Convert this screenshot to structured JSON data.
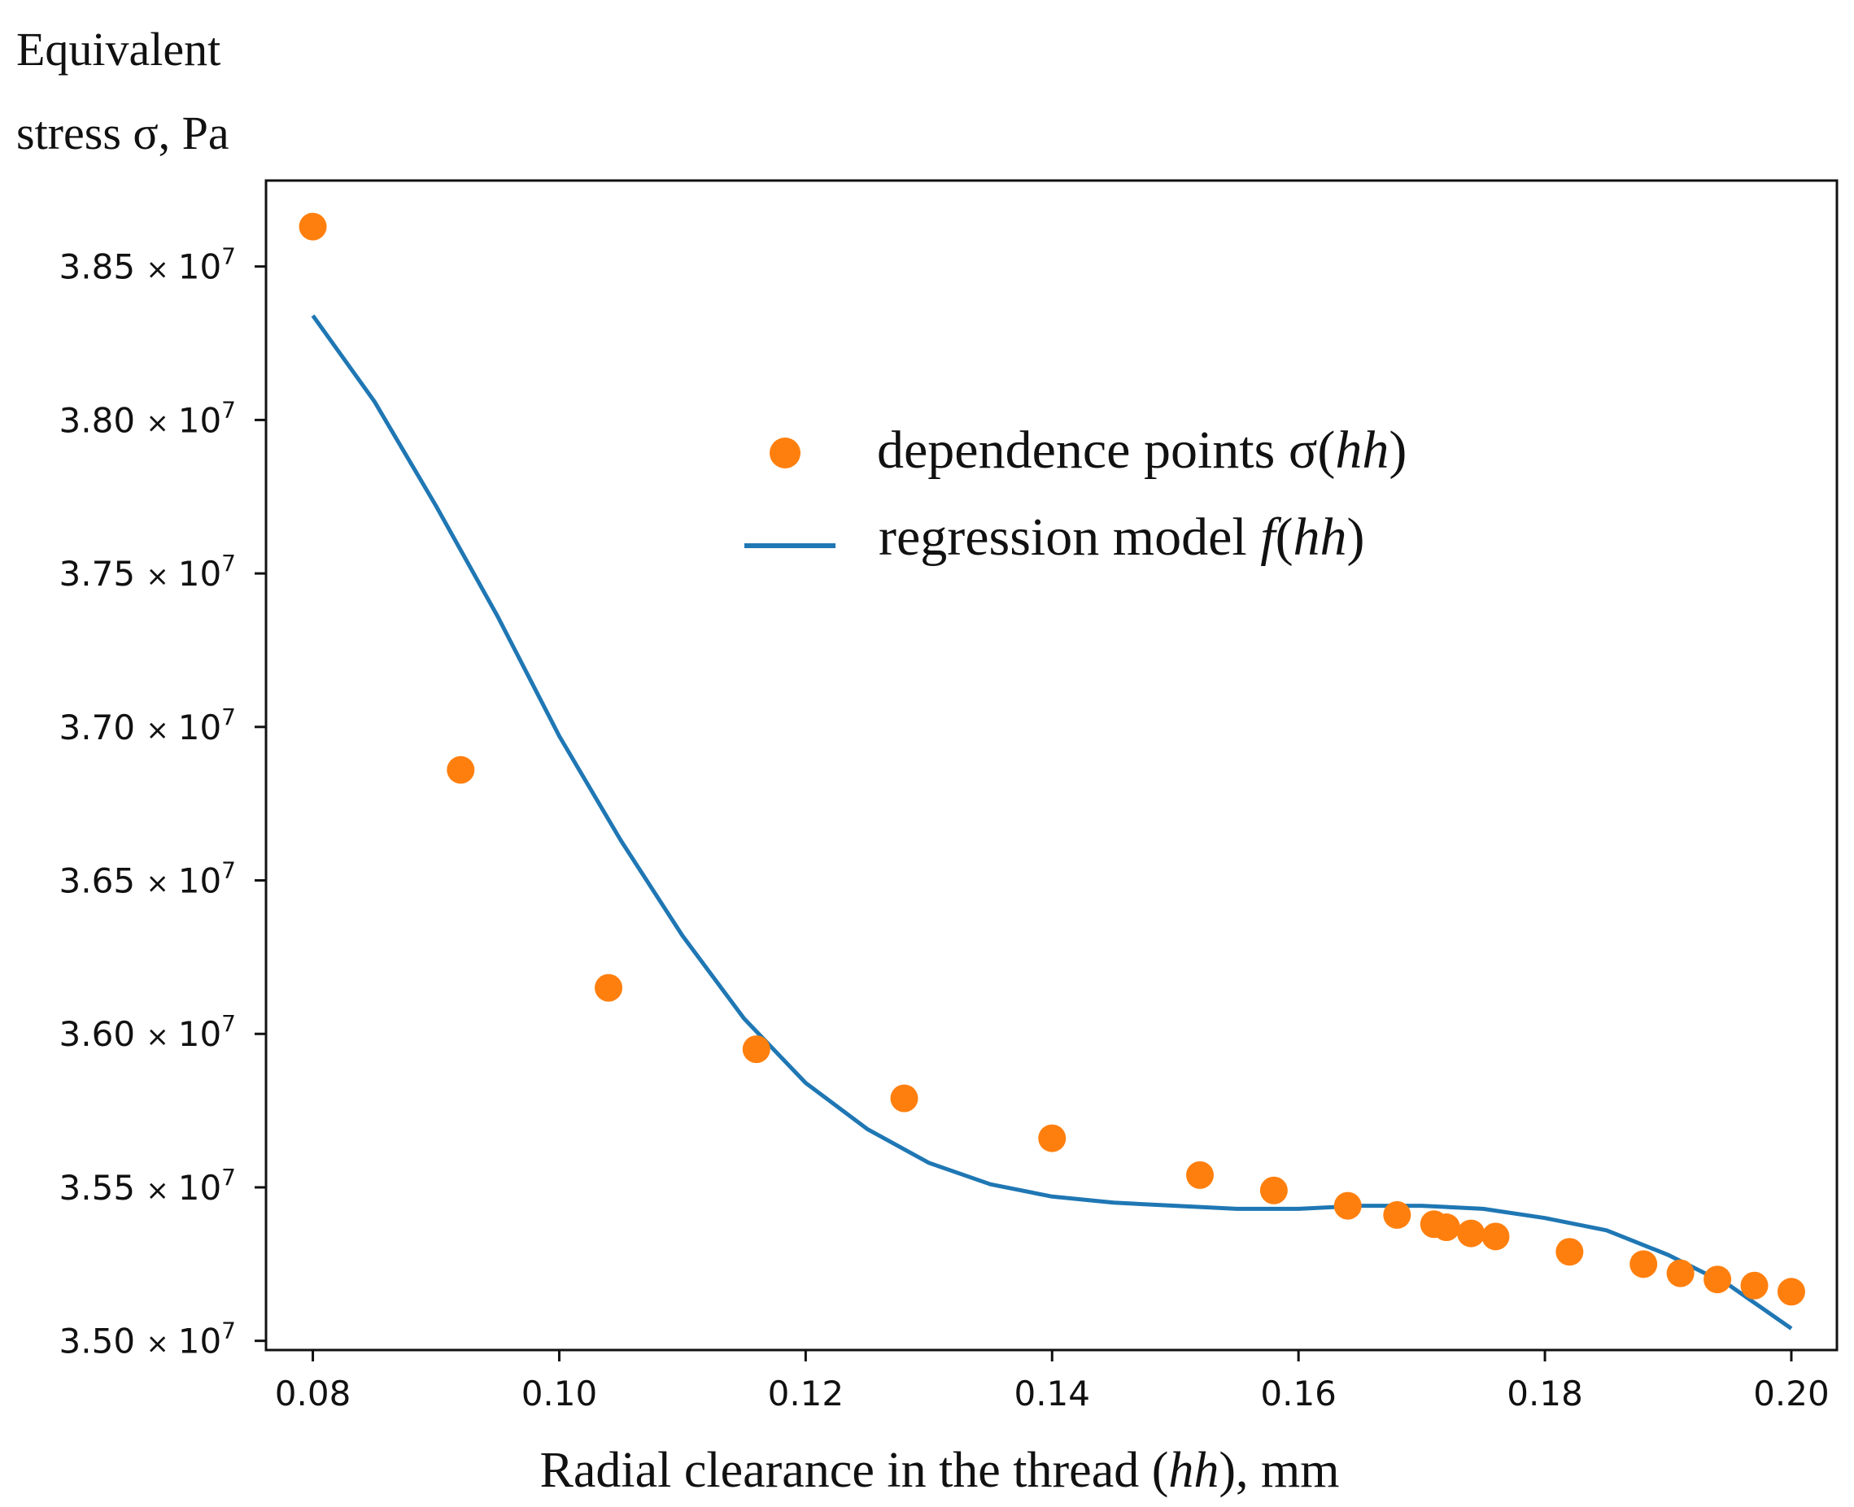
{
  "chart_data": {
    "type": "scatter",
    "ylabel_line1": "Equivalent",
    "ylabel_line2": "stress σ, Pa",
    "xlabel": "Radial clearance in the thread (hh), mm",
    "xlim": [
      0.0762,
      0.2037
    ],
    "ylim": [
      34.97,
      38.78
    ],
    "y_scale_label": "× 10⁷",
    "x_ticks": [
      {
        "value": 0.08,
        "label": "0.08"
      },
      {
        "value": 0.1,
        "label": "0.10"
      },
      {
        "value": 0.12,
        "label": "0.12"
      },
      {
        "value": 0.14,
        "label": "0.14"
      },
      {
        "value": 0.16,
        "label": "0.16"
      },
      {
        "value": 0.18,
        "label": "0.18"
      },
      {
        "value": 0.2,
        "label": "0.20"
      }
    ],
    "y_ticks": [
      {
        "value": 35.0,
        "mant": "3.50",
        "times": "×",
        "base": "10",
        "exp": "7"
      },
      {
        "value": 35.5,
        "mant": "3.55",
        "times": "×",
        "base": "10",
        "exp": "7"
      },
      {
        "value": 36.0,
        "mant": "3.60",
        "times": "×",
        "base": "10",
        "exp": "7"
      },
      {
        "value": 36.5,
        "mant": "3.65",
        "times": "×",
        "base": "10",
        "exp": "7"
      },
      {
        "value": 37.0,
        "mant": "3.70",
        "times": "×",
        "base": "10",
        "exp": "7"
      },
      {
        "value": 37.5,
        "mant": "3.75",
        "times": "×",
        "base": "10",
        "exp": "7"
      },
      {
        "value": 38.0,
        "mant": "3.80",
        "times": "×",
        "base": "10",
        "exp": "7"
      },
      {
        "value": 38.5,
        "mant": "3.85",
        "times": "×",
        "base": "10",
        "exp": "7"
      }
    ],
    "series": [
      {
        "name": "dependence points σ(hh)",
        "kind": "scatter",
        "color": "#ff7f0e",
        "points": [
          {
            "x": 0.08,
            "y": 38.63
          },
          {
            "x": 0.092,
            "y": 36.86
          },
          {
            "x": 0.104,
            "y": 36.15
          },
          {
            "x": 0.116,
            "y": 35.95
          },
          {
            "x": 0.128,
            "y": 35.79
          },
          {
            "x": 0.14,
            "y": 35.66
          },
          {
            "x": 0.152,
            "y": 35.54
          },
          {
            "x": 0.158,
            "y": 35.49
          },
          {
            "x": 0.164,
            "y": 35.44
          },
          {
            "x": 0.168,
            "y": 35.41
          },
          {
            "x": 0.171,
            "y": 35.38
          },
          {
            "x": 0.172,
            "y": 35.37
          },
          {
            "x": 0.174,
            "y": 35.35
          },
          {
            "x": 0.176,
            "y": 35.34
          },
          {
            "x": 0.182,
            "y": 35.29
          },
          {
            "x": 0.188,
            "y": 35.25
          },
          {
            "x": 0.191,
            "y": 35.22
          },
          {
            "x": 0.194,
            "y": 35.2
          },
          {
            "x": 0.197,
            "y": 35.18
          },
          {
            "x": 0.2,
            "y": 35.16
          }
        ]
      },
      {
        "name": "regression model f(hh)",
        "kind": "line",
        "color": "#1f77b4",
        "points": [
          {
            "x": 0.08,
            "y": 38.34
          },
          {
            "x": 0.085,
            "y": 38.06
          },
          {
            "x": 0.09,
            "y": 37.72
          },
          {
            "x": 0.095,
            "y": 37.36
          },
          {
            "x": 0.1,
            "y": 36.97
          },
          {
            "x": 0.105,
            "y": 36.63
          },
          {
            "x": 0.11,
            "y": 36.32
          },
          {
            "x": 0.115,
            "y": 36.05
          },
          {
            "x": 0.12,
            "y": 35.84
          },
          {
            "x": 0.125,
            "y": 35.69
          },
          {
            "x": 0.13,
            "y": 35.58
          },
          {
            "x": 0.135,
            "y": 35.51
          },
          {
            "x": 0.14,
            "y": 35.47
          },
          {
            "x": 0.145,
            "y": 35.45
          },
          {
            "x": 0.15,
            "y": 35.44
          },
          {
            "x": 0.155,
            "y": 35.43
          },
          {
            "x": 0.16,
            "y": 35.43
          },
          {
            "x": 0.165,
            "y": 35.44
          },
          {
            "x": 0.17,
            "y": 35.44
          },
          {
            "x": 0.175,
            "y": 35.43
          },
          {
            "x": 0.18,
            "y": 35.4
          },
          {
            "x": 0.185,
            "y": 35.36
          },
          {
            "x": 0.19,
            "y": 35.28
          },
          {
            "x": 0.195,
            "y": 35.18
          },
          {
            "x": 0.2,
            "y": 35.04
          }
        ]
      }
    ],
    "legend": {
      "position": "top-center",
      "entries": [
        {
          "pre": "dependence points σ(",
          "ital": "hh",
          "post": ")"
        },
        {
          "pre": "regression model ",
          "ital": "f",
          "mid": "(",
          "ital2": "hh",
          "post": ")"
        }
      ]
    },
    "xlabel_parts": {
      "pre": "Radial clearance in the thread (",
      "ital": "hh",
      "post": "), mm"
    }
  }
}
